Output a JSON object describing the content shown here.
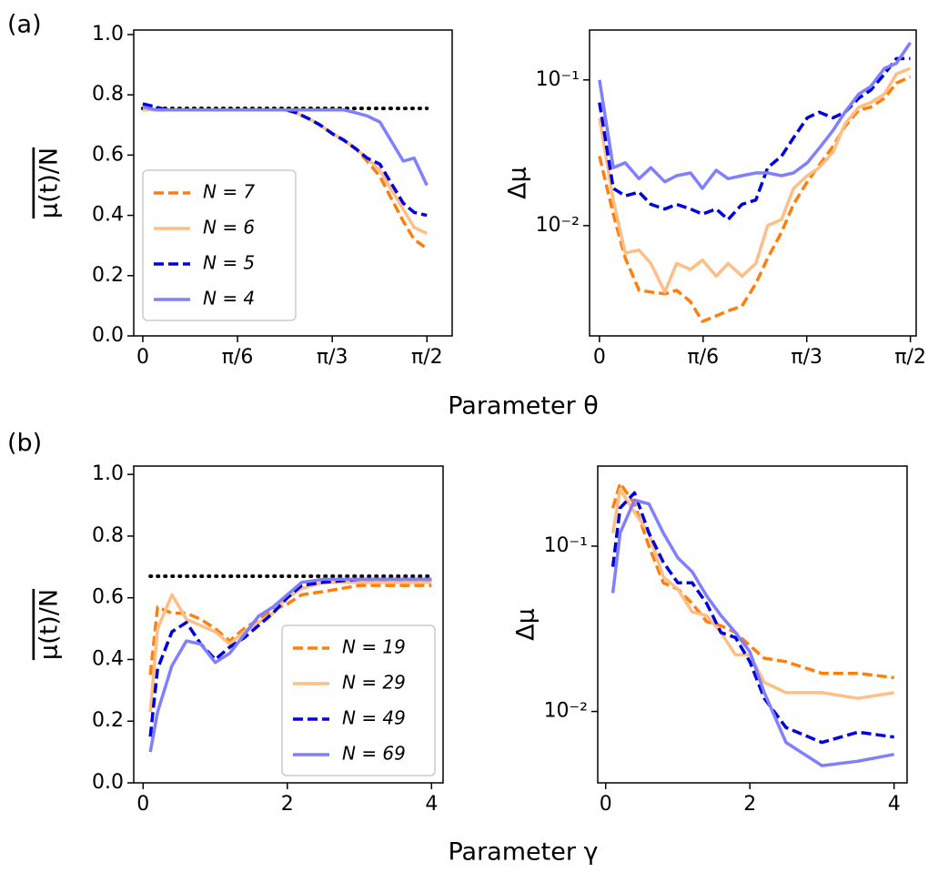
{
  "rows": [
    {
      "label": "(a)",
      "xlabel": "Parameter θ"
    },
    {
      "label": "(b)",
      "xlabel": "Parameter γ"
    }
  ],
  "chart_data": [
    {
      "type": "line",
      "ylabel": "μ(t)/N",
      "x": [
        0.0,
        0.07,
        0.13,
        0.2,
        0.26,
        0.33,
        0.39,
        0.46,
        0.52,
        0.59,
        0.65,
        0.72,
        0.79,
        0.85,
        0.92,
        0.98,
        1.05,
        1.11,
        1.18,
        1.24,
        1.31,
        1.37,
        1.44,
        1.5,
        1.57
      ],
      "xlim": [
        -0.05,
        1.71
      ],
      "ylim": [
        0,
        1.015
      ],
      "xticks": [
        0,
        {
          "value": 0.5236,
          "label": "π/6"
        },
        {
          "value": 1.0472,
          "label": "π/3"
        },
        {
          "value": 1.5708,
          "label": "π/2"
        }
      ],
      "yticks": [
        {
          "value": 0,
          "label": "0.0"
        },
        0.2,
        0.4,
        0.6,
        0.8,
        {
          "value": 1,
          "label": "1.0"
        }
      ],
      "log_y": false,
      "legend": "lower left",
      "reference": {
        "value": 0.755,
        "color": "#000000",
        "style": "dotted"
      },
      "series": [
        {
          "name": "N = 7",
          "color": "#ff7f0e",
          "style": "dashed",
          "values": [
            0.75,
            0.75,
            0.75,
            0.75,
            0.75,
            0.75,
            0.75,
            0.75,
            0.75,
            0.75,
            0.75,
            0.75,
            0.75,
            0.74,
            0.72,
            0.7,
            0.67,
            0.65,
            0.62,
            0.58,
            0.53,
            0.46,
            0.38,
            0.32,
            0.29
          ]
        },
        {
          "name": "N = 6",
          "color": "#fdbf85",
          "style": "solid",
          "values": [
            0.75,
            0.75,
            0.75,
            0.75,
            0.75,
            0.75,
            0.75,
            0.75,
            0.75,
            0.75,
            0.75,
            0.75,
            0.75,
            0.74,
            0.72,
            0.7,
            0.67,
            0.65,
            0.62,
            0.59,
            0.55,
            0.49,
            0.42,
            0.36,
            0.34
          ]
        },
        {
          "name": "N = 5",
          "color": "#0000dd",
          "style": "dashed",
          "values": [
            0.77,
            0.76,
            0.75,
            0.75,
            0.75,
            0.75,
            0.75,
            0.75,
            0.75,
            0.75,
            0.75,
            0.75,
            0.75,
            0.74,
            0.72,
            0.7,
            0.67,
            0.65,
            0.62,
            0.59,
            0.57,
            0.51,
            0.44,
            0.41,
            0.4
          ]
        },
        {
          "name": "N = 4",
          "color": "#7f7fff",
          "style": "solid",
          "values": [
            0.76,
            0.75,
            0.75,
            0.75,
            0.75,
            0.75,
            0.75,
            0.75,
            0.75,
            0.75,
            0.75,
            0.75,
            0.75,
            0.75,
            0.75,
            0.75,
            0.75,
            0.75,
            0.74,
            0.73,
            0.71,
            0.65,
            0.58,
            0.59,
            0.5
          ]
        }
      ]
    },
    {
      "type": "line",
      "ylabel": "Δμ",
      "x": [
        0.0,
        0.07,
        0.13,
        0.2,
        0.26,
        0.33,
        0.39,
        0.46,
        0.52,
        0.59,
        0.65,
        0.72,
        0.79,
        0.85,
        0.92,
        0.98,
        1.05,
        1.11,
        1.18,
        1.24,
        1.31,
        1.37,
        1.44,
        1.5,
        1.57
      ],
      "xlim": [
        -0.05,
        1.6
      ],
      "ylim": [
        0.00175,
        0.22
      ],
      "xticks": [
        0,
        {
          "value": 0.5236,
          "label": "π/6"
        },
        {
          "value": 1.0472,
          "label": "π/3"
        },
        {
          "value": 1.5708,
          "label": "π/2"
        }
      ],
      "yticks": [
        {
          "value": 0.01,
          "label": "10⁻²"
        },
        {
          "value": 0.1,
          "label": "10⁻¹"
        }
      ],
      "log_y": true,
      "series": [
        {
          "name": "N = 7",
          "color": "#ff7f0e",
          "style": "dashed",
          "values": [
            0.03,
            0.012,
            0.006,
            0.0036,
            0.0035,
            0.0034,
            0.0036,
            0.003,
            0.0022,
            0.0024,
            0.0026,
            0.0028,
            0.004,
            0.006,
            0.009,
            0.014,
            0.02,
            0.026,
            0.035,
            0.048,
            0.062,
            0.065,
            0.075,
            0.095,
            0.105
          ]
        },
        {
          "name": "N = 6",
          "color": "#fdbf85",
          "style": "solid",
          "values": [
            0.055,
            0.015,
            0.0065,
            0.0068,
            0.0055,
            0.0035,
            0.0055,
            0.005,
            0.0058,
            0.0045,
            0.0055,
            0.0045,
            0.0055,
            0.01,
            0.011,
            0.018,
            0.022,
            0.025,
            0.032,
            0.05,
            0.065,
            0.07,
            0.08,
            0.11,
            0.12
          ]
        },
        {
          "name": "N = 5",
          "color": "#0000dd",
          "style": "dashed",
          "values": [
            0.07,
            0.018,
            0.016,
            0.017,
            0.014,
            0.013,
            0.014,
            0.013,
            0.012,
            0.013,
            0.011,
            0.014,
            0.015,
            0.025,
            0.03,
            0.04,
            0.055,
            0.06,
            0.055,
            0.06,
            0.075,
            0.085,
            0.11,
            0.14,
            0.14
          ]
        },
        {
          "name": "N = 4",
          "color": "#7f7fff",
          "style": "solid",
          "values": [
            0.1,
            0.025,
            0.027,
            0.021,
            0.025,
            0.02,
            0.022,
            0.023,
            0.018,
            0.024,
            0.021,
            0.022,
            0.023,
            0.023,
            0.022,
            0.023,
            0.027,
            0.034,
            0.045,
            0.06,
            0.08,
            0.09,
            0.12,
            0.13,
            0.18
          ]
        }
      ]
    },
    {
      "type": "line",
      "ylabel": "μ(t)/N",
      "x": [
        0.1,
        0.2,
        0.4,
        0.6,
        0.8,
        1.0,
        1.2,
        1.4,
        1.6,
        1.8,
        2.0,
        2.2,
        2.5,
        3.0,
        3.5,
        4.0
      ],
      "xlim": [
        -0.13,
        4.16
      ],
      "ylim": [
        0,
        1.027
      ],
      "xticks": [
        0,
        2,
        4
      ],
      "yticks": [
        {
          "value": 0,
          "label": "0.0"
        },
        0.2,
        0.4,
        0.6,
        0.8,
        {
          "value": 1,
          "label": "1.0"
        }
      ],
      "log_y": false,
      "legend": "lower right",
      "reference": {
        "value": 0.67,
        "color": "#000000",
        "style": "dotted"
      },
      "series": [
        {
          "name": "N = 19",
          "color": "#ff7f0e",
          "style": "dashed",
          "values": [
            0.35,
            0.57,
            0.55,
            0.55,
            0.53,
            0.5,
            0.46,
            0.5,
            0.53,
            0.56,
            0.58,
            0.61,
            0.62,
            0.64,
            0.64,
            0.64
          ]
        },
        {
          "name": "N = 29",
          "color": "#fdbf85",
          "style": "solid",
          "values": [
            0.23,
            0.5,
            0.61,
            0.53,
            0.51,
            0.49,
            0.45,
            0.49,
            0.52,
            0.55,
            0.6,
            0.63,
            0.65,
            0.65,
            0.65,
            0.65
          ]
        },
        {
          "name": "N = 49",
          "color": "#0000dd",
          "style": "dashed",
          "values": [
            0.15,
            0.37,
            0.49,
            0.52,
            0.45,
            0.4,
            0.44,
            0.47,
            0.51,
            0.55,
            0.6,
            0.64,
            0.65,
            0.66,
            0.66,
            0.66
          ]
        },
        {
          "name": "N = 69",
          "color": "#7f7fff",
          "style": "solid",
          "values": [
            0.1,
            0.23,
            0.38,
            0.46,
            0.45,
            0.39,
            0.42,
            0.48,
            0.54,
            0.57,
            0.61,
            0.65,
            0.66,
            0.66,
            0.66,
            0.66
          ]
        }
      ]
    },
    {
      "type": "line",
      "ylabel": "Δμ",
      "x": [
        0.1,
        0.2,
        0.4,
        0.6,
        0.8,
        1.0,
        1.2,
        1.4,
        1.6,
        1.8,
        2.0,
        2.2,
        2.5,
        3.0,
        3.5,
        4.0
      ],
      "xlim": [
        -0.11,
        4.18
      ],
      "ylim": [
        0.0037,
        0.305
      ],
      "xticks": [
        0,
        2,
        4
      ],
      "yticks": [
        {
          "value": 0.01,
          "label": "10⁻²"
        },
        {
          "value": 0.1,
          "label": "10⁻¹"
        }
      ],
      "log_y": true,
      "series": [
        {
          "name": "N = 19",
          "color": "#ff7f0e",
          "style": "dashed",
          "values": [
            0.17,
            0.24,
            0.18,
            0.1,
            0.06,
            0.055,
            0.045,
            0.035,
            0.033,
            0.03,
            0.025,
            0.021,
            0.02,
            0.017,
            0.017,
            0.016
          ]
        },
        {
          "name": "N = 29",
          "color": "#fdbf85",
          "style": "solid",
          "values": [
            0.12,
            0.22,
            0.16,
            0.12,
            0.065,
            0.055,
            0.04,
            0.038,
            0.03,
            0.022,
            0.022,
            0.015,
            0.013,
            0.013,
            0.012,
            0.013
          ]
        },
        {
          "name": "N = 49",
          "color": "#0000dd",
          "style": "dashed",
          "values": [
            0.075,
            0.17,
            0.21,
            0.12,
            0.08,
            0.06,
            0.06,
            0.045,
            0.03,
            0.028,
            0.02,
            0.012,
            0.008,
            0.0065,
            0.0075,
            0.007
          ]
        },
        {
          "name": "N = 69",
          "color": "#7f7fff",
          "style": "solid",
          "values": [
            0.052,
            0.12,
            0.19,
            0.18,
            0.12,
            0.085,
            0.07,
            0.05,
            0.038,
            0.03,
            0.023,
            0.013,
            0.0065,
            0.0047,
            0.005,
            0.0055
          ]
        }
      ]
    }
  ]
}
